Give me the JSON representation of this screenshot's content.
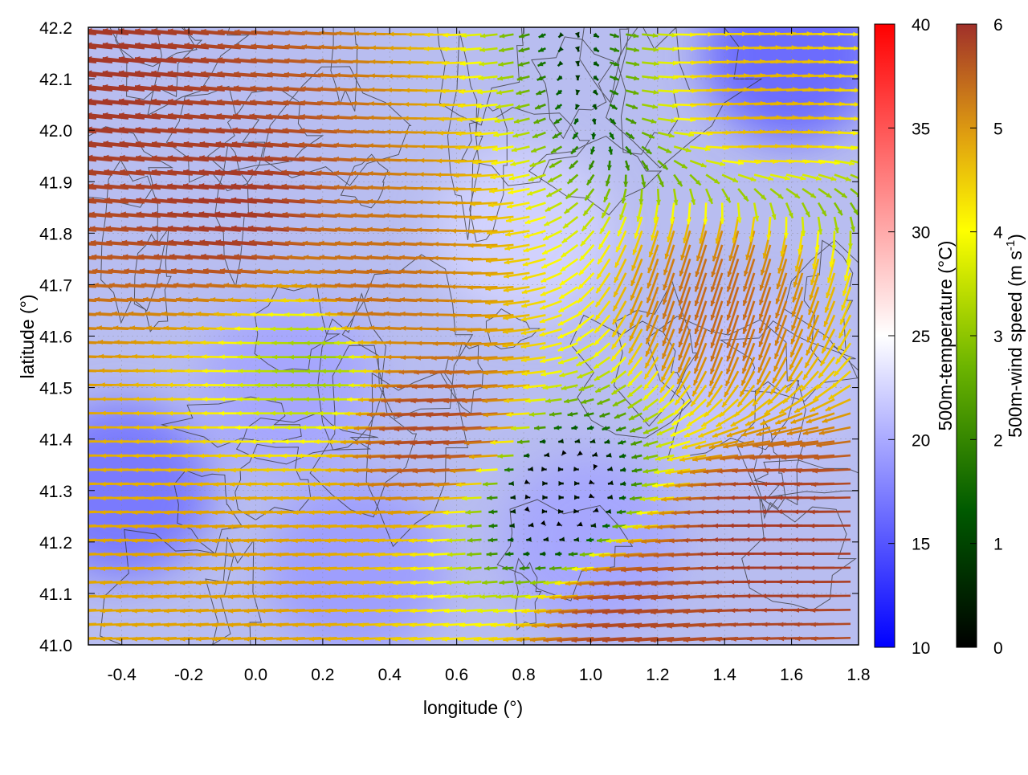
{
  "chart_data": {
    "type": "vector-field",
    "xlabel": "longitude (°)",
    "ylabel": "latitude (°)",
    "xlim": [
      -0.5,
      1.8
    ],
    "ylim": [
      41.0,
      42.2
    ],
    "x_ticks": [
      "-0.4",
      "-0.2",
      "0.0",
      "0.2",
      "0.4",
      "0.6",
      "0.8",
      "1.0",
      "1.2",
      "1.4",
      "1.6",
      "1.8"
    ],
    "x_tick_values": [
      -0.4,
      -0.2,
      0.0,
      0.2,
      0.4,
      0.6,
      0.8,
      1.0,
      1.2,
      1.4,
      1.6,
      1.8
    ],
    "y_ticks": [
      "41.0",
      "41.1",
      "41.2",
      "41.3",
      "41.4",
      "41.5",
      "41.6",
      "41.7",
      "41.8",
      "41.9",
      "42.0",
      "42.1",
      "42.2"
    ],
    "y_tick_values": [
      41.0,
      41.1,
      41.2,
      41.3,
      41.4,
      41.5,
      41.6,
      41.7,
      41.8,
      41.9,
      42.0,
      42.1,
      42.2
    ],
    "grid": true,
    "temperature_colorbar": {
      "label": "500m-temperature (°C)",
      "range": [
        10,
        40
      ],
      "ticks": [
        "10",
        "15",
        "20",
        "25",
        "30",
        "35",
        "40"
      ],
      "tick_values": [
        10,
        15,
        20,
        25,
        30,
        35,
        40
      ],
      "colors": [
        "#0000ff",
        "#ffffff",
        "#ff0000"
      ]
    },
    "wind_colorbar": {
      "label": "500m-wind speed (m s",
      "label_sup": "-1",
      "label_end": ")",
      "range": [
        0,
        6
      ],
      "ticks": [
        "0",
        "1",
        "2",
        "3",
        "4",
        "5",
        "6"
      ],
      "tick_values": [
        0,
        1,
        2,
        3,
        4,
        5,
        6
      ],
      "colors": [
        "#000000",
        "#006400",
        "#7fbf00",
        "#ffff00",
        "#e0a000",
        "#c06020",
        "#a0302a"
      ]
    },
    "temperature_field": {
      "description_values_degC": "mostly 17-22",
      "cells": [
        {
          "lon": -0.4,
          "lat": 41.3,
          "t": 16.5
        },
        {
          "lon": 0.1,
          "lat": 41.5,
          "t": 19.5
        },
        {
          "lon": 0.8,
          "lat": 41.8,
          "t": 22.5
        },
        {
          "lon": 1.6,
          "lat": 42.15,
          "t": 15.5
        },
        {
          "lon": 1.5,
          "lat": 41.5,
          "t": 21.5
        },
        {
          "lon": 0.3,
          "lat": 41.15,
          "t": 19.0
        },
        {
          "lon": 1.0,
          "lat": 41.2,
          "t": 19.5
        }
      ]
    },
    "wind_vectors_sample": [
      {
        "lon": -0.4,
        "lat": 42.1,
        "u": -5.8,
        "v": 0.6,
        "speed": 6.0
      },
      {
        "lon": 0.0,
        "lat": 41.85,
        "u": -5.8,
        "v": 0.5,
        "speed": 6.0
      },
      {
        "lon": 0.4,
        "lat": 41.7,
        "u": -4.8,
        "v": 0.3,
        "speed": 5.0
      },
      {
        "lon": 0.2,
        "lat": 41.55,
        "u": -2.2,
        "v": 0.0,
        "speed": 2.2
      },
      {
        "lon": 0.6,
        "lat": 41.42,
        "u": -5.5,
        "v": -0.3,
        "speed": 5.7
      },
      {
        "lon": 1.4,
        "lat": 41.7,
        "u": -1.5,
        "v": -4.6,
        "speed": 5.2
      },
      {
        "lon": 1.6,
        "lat": 41.2,
        "u": -5.8,
        "v": 0.0,
        "speed": 6.0
      },
      {
        "lon": 1.2,
        "lat": 41.05,
        "u": -5.5,
        "v": -0.4,
        "speed": 5.8
      },
      {
        "lon": 0.9,
        "lat": 41.3,
        "u": 0.3,
        "v": 0.0,
        "speed": 0.4
      },
      {
        "lon": 1.5,
        "lat": 42.05,
        "u": 3.8,
        "v": 0.2,
        "speed": 3.8
      },
      {
        "lon": 0.0,
        "lat": 41.15,
        "u": -4.0,
        "v": -0.2,
        "speed": 4.0
      }
    ]
  }
}
